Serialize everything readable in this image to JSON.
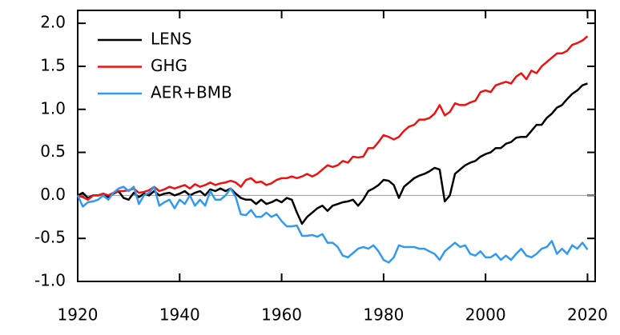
{
  "chart_data": {
    "type": "line",
    "x": [
      1920,
      1921,
      1922,
      1923,
      1924,
      1925,
      1926,
      1927,
      1928,
      1929,
      1930,
      1931,
      1932,
      1933,
      1934,
      1935,
      1936,
      1937,
      1938,
      1939,
      1940,
      1941,
      1942,
      1943,
      1944,
      1945,
      1946,
      1947,
      1948,
      1949,
      1950,
      1951,
      1952,
      1953,
      1954,
      1955,
      1956,
      1957,
      1958,
      1959,
      1960,
      1961,
      1962,
      1963,
      1964,
      1965,
      1966,
      1967,
      1968,
      1969,
      1970,
      1971,
      1972,
      1973,
      1974,
      1975,
      1976,
      1977,
      1978,
      1979,
      1980,
      1981,
      1982,
      1983,
      1984,
      1985,
      1986,
      1987,
      1988,
      1989,
      1990,
      1991,
      1992,
      1993,
      1994,
      1995,
      1996,
      1997,
      1998,
      1999,
      2000,
      2001,
      2002,
      2003,
      2004,
      2005,
      2006,
      2007,
      2008,
      2009,
      2010,
      2011,
      2012,
      2013,
      2014,
      2015,
      2016,
      2017,
      2018,
      2019,
      2020
    ],
    "series": [
      {
        "name": "LENS",
        "color": "#000000",
        "values": [
          0.0,
          0.03,
          -0.03,
          0.0,
          0.0,
          0.02,
          -0.02,
          0.02,
          0.05,
          -0.03,
          -0.05,
          0.03,
          -0.02,
          0.02,
          0.0,
          0.05,
          0.0,
          0.02,
          0.03,
          0.0,
          0.02,
          0.05,
          0.0,
          0.03,
          0.05,
          0.0,
          0.07,
          0.05,
          0.08,
          0.05,
          0.08,
          0.02,
          -0.03,
          -0.05,
          -0.05,
          -0.1,
          -0.05,
          -0.1,
          -0.08,
          -0.05,
          -0.08,
          -0.03,
          -0.05,
          -0.2,
          -0.33,
          -0.25,
          -0.2,
          -0.15,
          -0.12,
          -0.18,
          -0.12,
          -0.1,
          -0.08,
          -0.07,
          -0.05,
          -0.12,
          -0.05,
          0.05,
          0.08,
          0.12,
          0.18,
          0.17,
          0.12,
          -0.03,
          0.1,
          0.15,
          0.2,
          0.23,
          0.25,
          0.28,
          0.32,
          0.3,
          -0.07,
          0.0,
          0.25,
          0.3,
          0.35,
          0.38,
          0.4,
          0.45,
          0.48,
          0.5,
          0.55,
          0.55,
          0.6,
          0.62,
          0.67,
          0.68,
          0.68,
          0.75,
          0.82,
          0.82,
          0.9,
          0.95,
          1.02,
          1.05,
          1.12,
          1.18,
          1.22,
          1.28,
          1.3
        ]
      },
      {
        "name": "GHG",
        "color": "#ee1111",
        "values": [
          0.0,
          -0.02,
          -0.05,
          0.0,
          0.0,
          0.02,
          0.0,
          0.03,
          0.05,
          0.05,
          0.06,
          0.08,
          0.03,
          0.04,
          0.06,
          0.1,
          0.05,
          0.07,
          0.1,
          0.08,
          0.1,
          0.12,
          0.08,
          0.13,
          0.1,
          0.12,
          0.15,
          0.12,
          0.14,
          0.15,
          0.17,
          0.15,
          0.1,
          0.18,
          0.2,
          0.15,
          0.16,
          0.12,
          0.14,
          0.18,
          0.2,
          0.2,
          0.22,
          0.2,
          0.22,
          0.25,
          0.22,
          0.25,
          0.3,
          0.35,
          0.33,
          0.35,
          0.4,
          0.38,
          0.45,
          0.44,
          0.45,
          0.55,
          0.55,
          0.62,
          0.7,
          0.68,
          0.65,
          0.68,
          0.75,
          0.8,
          0.82,
          0.88,
          0.88,
          0.9,
          0.95,
          1.05,
          0.93,
          0.97,
          1.07,
          1.05,
          1.05,
          1.08,
          1.1,
          1.2,
          1.22,
          1.2,
          1.28,
          1.3,
          1.32,
          1.3,
          1.38,
          1.42,
          1.35,
          1.45,
          1.42,
          1.5,
          1.55,
          1.6,
          1.65,
          1.65,
          1.68,
          1.75,
          1.77,
          1.8,
          1.85
        ]
      },
      {
        "name": "AER+BMB",
        "color": "#3399ee",
        "values": [
          0.0,
          -0.13,
          -0.08,
          -0.07,
          -0.05,
          0.0,
          -0.05,
          0.03,
          0.08,
          0.1,
          0.05,
          0.1,
          -0.1,
          0.0,
          0.03,
          0.1,
          -0.12,
          -0.08,
          -0.05,
          -0.15,
          -0.05,
          -0.1,
          0.0,
          -0.12,
          -0.05,
          -0.12,
          0.05,
          -0.05,
          -0.05,
          0.0,
          0.08,
          -0.02,
          -0.22,
          -0.23,
          -0.17,
          -0.25,
          -0.25,
          -0.2,
          -0.25,
          -0.22,
          -0.3,
          -0.36,
          -0.36,
          -0.35,
          -0.47,
          -0.47,
          -0.46,
          -0.48,
          -0.45,
          -0.55,
          -0.55,
          -0.6,
          -0.7,
          -0.72,
          -0.67,
          -0.62,
          -0.6,
          -0.62,
          -0.58,
          -0.65,
          -0.75,
          -0.78,
          -0.72,
          -0.58,
          -0.6,
          -0.6,
          -0.6,
          -0.62,
          -0.62,
          -0.65,
          -0.68,
          -0.75,
          -0.65,
          -0.6,
          -0.55,
          -0.6,
          -0.58,
          -0.68,
          -0.7,
          -0.65,
          -0.72,
          -0.72,
          -0.68,
          -0.75,
          -0.7,
          -0.75,
          -0.68,
          -0.62,
          -0.7,
          -0.72,
          -0.68,
          -0.62,
          -0.6,
          -0.53,
          -0.68,
          -0.62,
          -0.68,
          -0.58,
          -0.62,
          -0.55,
          -0.63
        ]
      }
    ],
    "xlim": [
      1920,
      2021.5
    ],
    "xticks": [
      1920,
      1940,
      1960,
      1980,
      2000,
      2020
    ],
    "ylim": [
      -1,
      2.15
    ],
    "yticks": [
      {
        "value": -1,
        "label": "-1.0"
      },
      -0.5,
      {
        "value": 0,
        "label": "0.0"
      },
      0.5,
      {
        "value": 1,
        "label": "1.0"
      },
      1.5,
      {
        "value": 2,
        "label": "2.0"
      }
    ],
    "legend": "upper left"
  }
}
